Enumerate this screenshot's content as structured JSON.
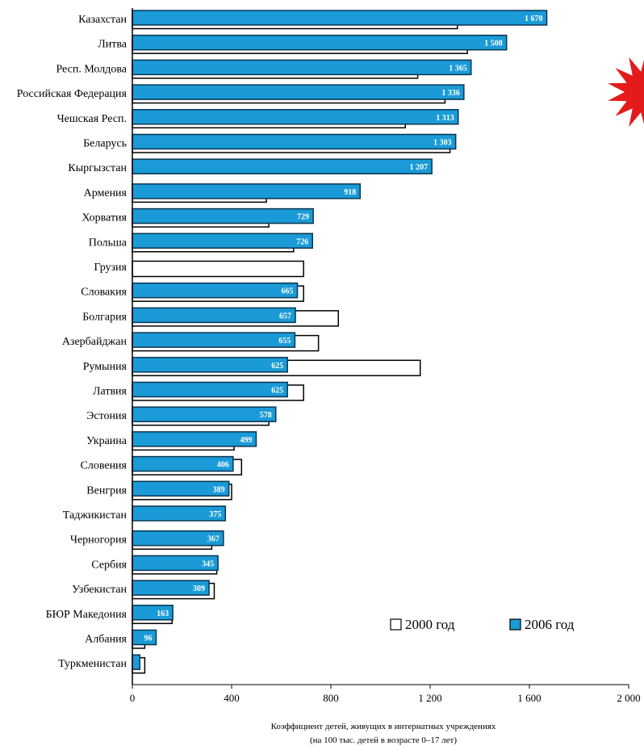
{
  "chart_data": {
    "type": "bar",
    "orientation": "horizontal",
    "categories": [
      "Казахстан",
      "Литва",
      "Респ. Молдова",
      "Российская Федерация",
      "Чешская Респ.",
      "Беларусь",
      "Кыргызстан",
      "Армения",
      "Хорватия",
      "Польша",
      "Грузия",
      "Словакия",
      "Болгария",
      "Азербайджан",
      "Румыния",
      "Латвия",
      "Эстония",
      "Украина",
      "Словения",
      "Венгрия",
      "Таджикистан",
      "Черногория",
      "Сербия",
      "Узбекистан",
      "БЮР Македония",
      "Албания",
      "Туркменистан"
    ],
    "series": [
      {
        "name": "2006 год",
        "color": "#1a9bd7",
        "values": [
          1670,
          1508,
          1365,
          1336,
          1313,
          1303,
          1207,
          918,
          729,
          726,
          null,
          665,
          657,
          655,
          625,
          625,
          578,
          499,
          406,
          389,
          375,
          367,
          345,
          309,
          163,
          96,
          30
        ],
        "labels": [
          "1 670",
          "1 508",
          "1 365",
          "1 336",
          "1 313",
          "1 303",
          "1 207",
          "918",
          "729",
          "726",
          "",
          "665",
          "657",
          "655",
          "625",
          "625",
          "578",
          "499",
          "406",
          "389",
          "375",
          "367",
          "345",
          "309",
          "163",
          "96",
          ""
        ]
      },
      {
        "name": "2000 год",
        "color": "#ffffff",
        "values": [
          1310,
          1350,
          1150,
          1260,
          1100,
          1280,
          null,
          540,
          550,
          650,
          690,
          690,
          830,
          750,
          1160,
          690,
          550,
          410,
          440,
          400,
          null,
          320,
          340,
          330,
          160,
          50,
          50
        ]
      }
    ],
    "xlabel_lines": [
      "Коэффициент детей, живущих в интернатных учреждениях",
      "(на 100 тыс. детей в возрасте 0–17 лет)"
    ],
    "xlim": [
      0,
      2000
    ],
    "xticks": [
      0,
      400,
      800,
      1200,
      1600,
      2000
    ],
    "xtick_labels": [
      "0",
      "400",
      "800",
      "1 200",
      "1 600",
      "2 000"
    ],
    "grid": false,
    "legend": {
      "position": "bottom-right",
      "items": [
        {
          "label": "2000 год",
          "color": "#ffffff"
        },
        {
          "label": "2006 год",
          "color": "#1a9bd7"
        }
      ]
    },
    "decoration": {
      "name": "red-star-icon",
      "color": "#e41b1b"
    }
  }
}
